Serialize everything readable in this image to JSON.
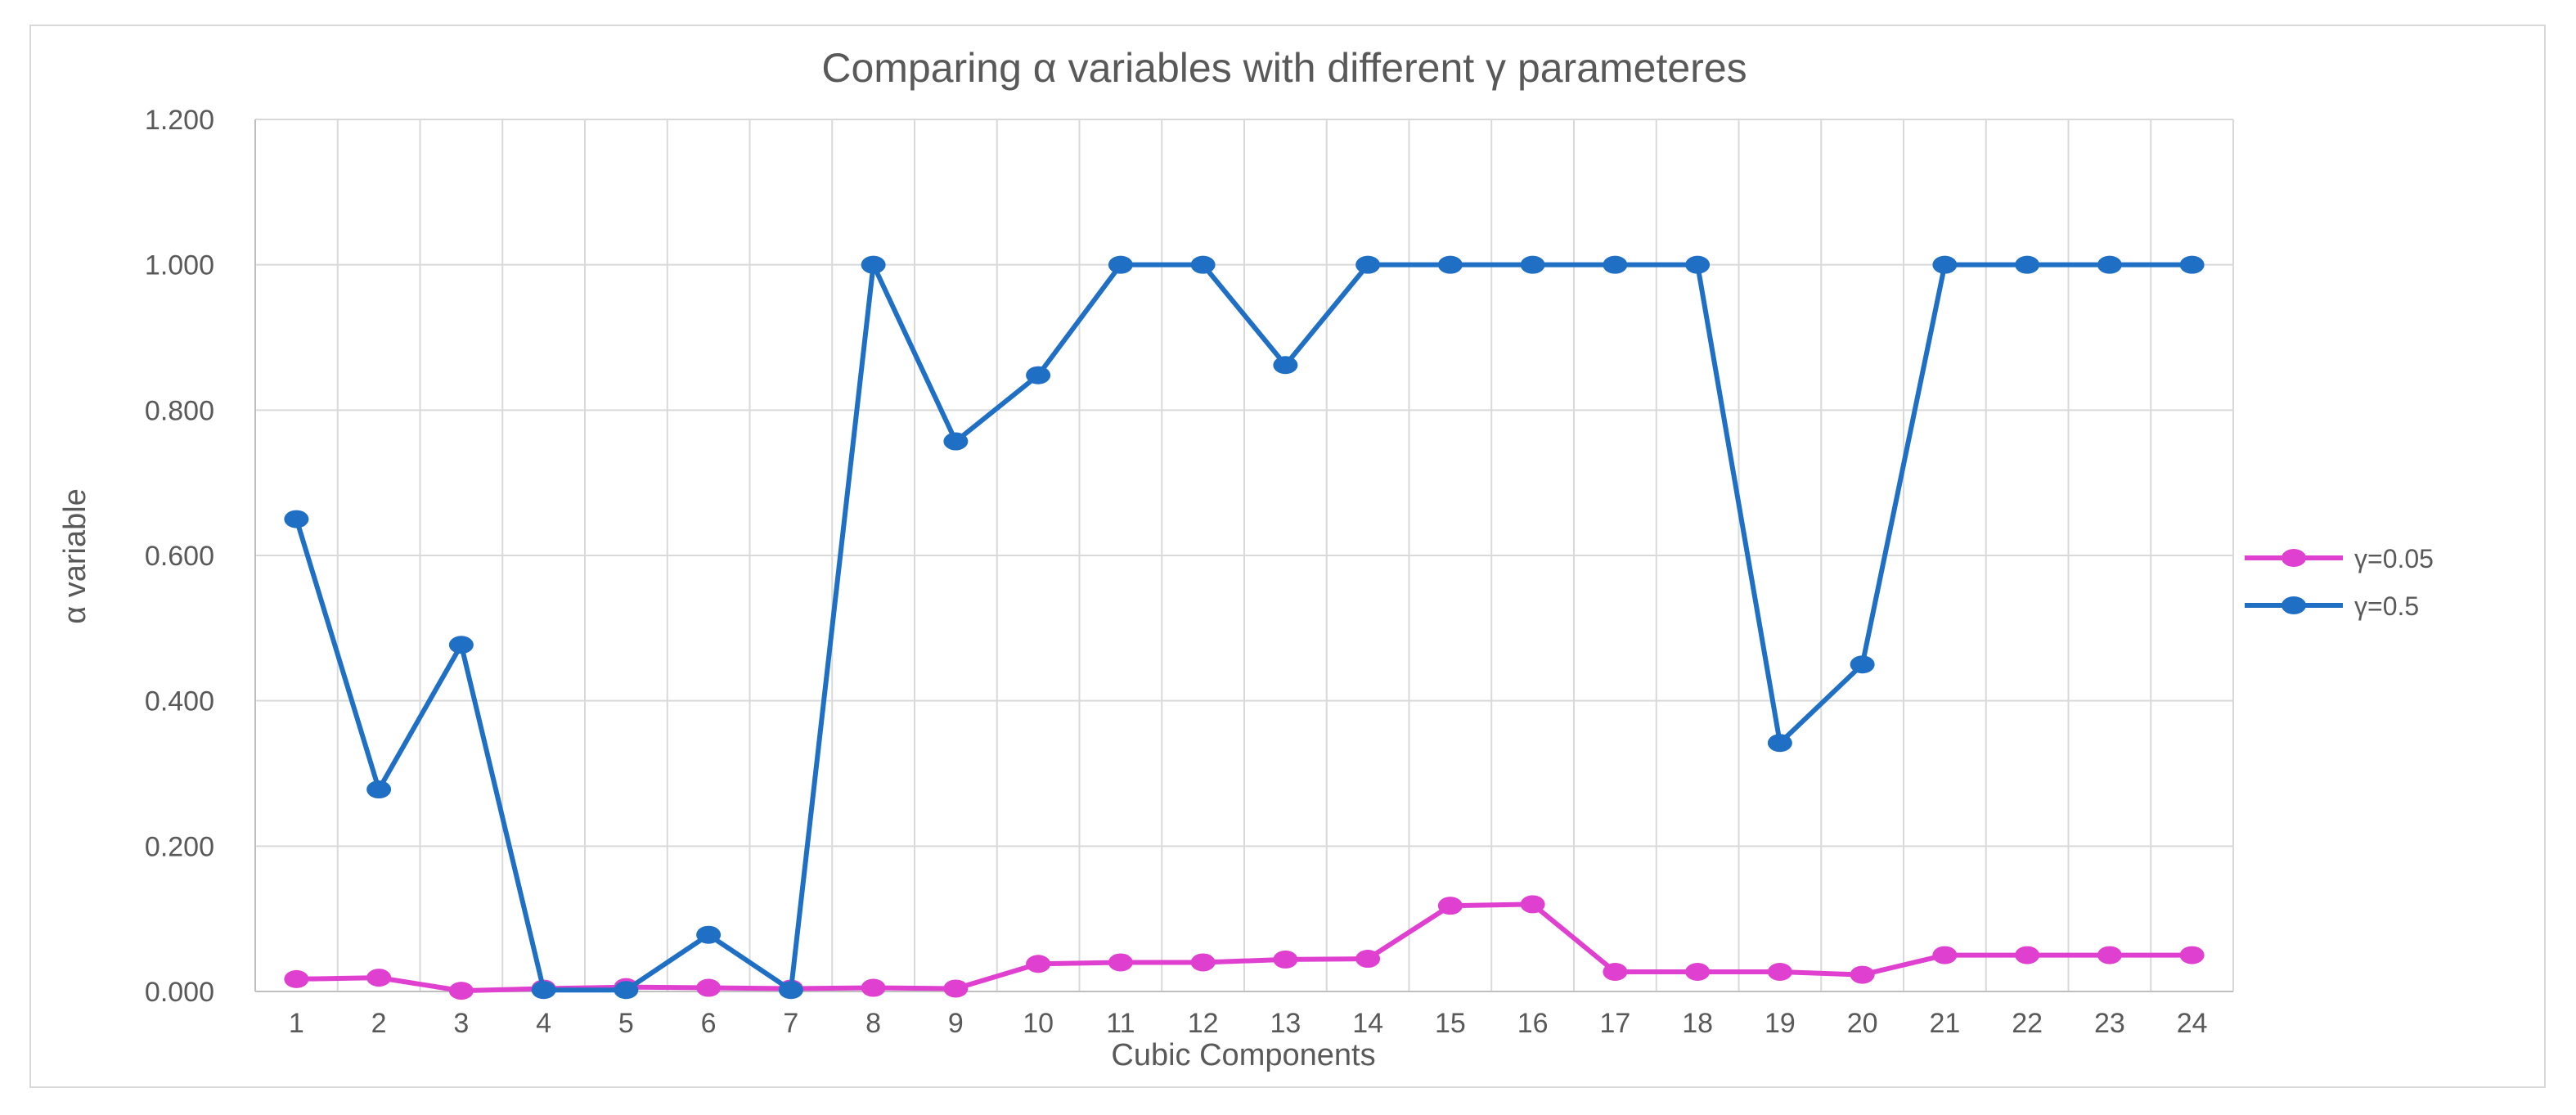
{
  "chart_data": {
    "type": "line",
    "title": "Comparing α variables with different γ parameteres",
    "xlabel": "Cubic Components",
    "ylabel": "α variable",
    "categories": [
      "1",
      "2",
      "3",
      "4",
      "5",
      "6",
      "7",
      "8",
      "9",
      "10",
      "11",
      "12",
      "13",
      "14",
      "15",
      "16",
      "17",
      "18",
      "19",
      "20",
      "21",
      "22",
      "23",
      "24"
    ],
    "yticks": [
      "0.000",
      "0.200",
      "0.400",
      "0.600",
      "0.800",
      "1.000",
      "1.200"
    ],
    "ylim": [
      0,
      1.2
    ],
    "grid": true,
    "legend_position": "right",
    "series": [
      {
        "name": "γ=0.05",
        "color": "#e040d0",
        "values": [
          0.017,
          0.019,
          0.001,
          0.004,
          0.006,
          0.005,
          0.004,
          0.005,
          0.004,
          0.038,
          0.04,
          0.04,
          0.044,
          0.045,
          0.118,
          0.12,
          0.027,
          0.027,
          0.027,
          0.023,
          0.05,
          0.05,
          0.05,
          0.05
        ]
      },
      {
        "name": "γ=0.5",
        "color": "#1f6fc5",
        "values": [
          0.65,
          0.278,
          0.477,
          0.002,
          0.002,
          0.078,
          0.002,
          1.0,
          0.757,
          0.848,
          1.0,
          1.0,
          0.862,
          1.0,
          1.0,
          1.0,
          1.0,
          1.0,
          0.342,
          0.45,
          1.0,
          1.0,
          1.0,
          1.0
        ]
      }
    ]
  }
}
